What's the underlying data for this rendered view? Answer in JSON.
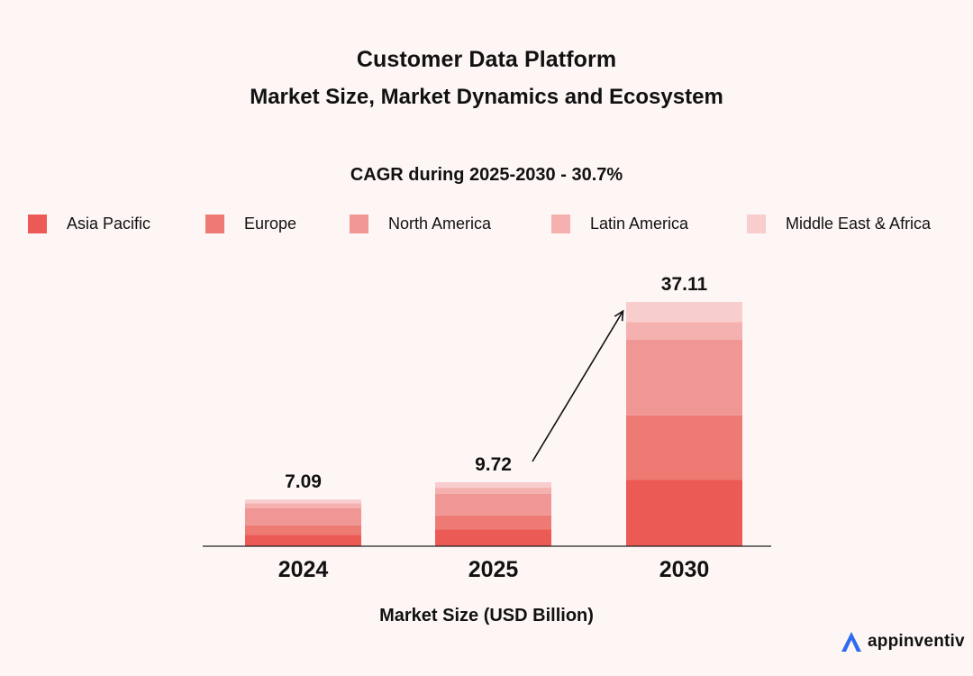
{
  "title": "Customer Data Platform",
  "subtitle": "Market Size, Market Dynamics and Ecosystem",
  "cagr_text": "CAGR during 2025-2030 - 30.7%",
  "brand": {
    "name": "appinventiv",
    "logo_color": "#2f6bef"
  },
  "legend": [
    {
      "label": "Asia Pacific",
      "color": "#ec5a55"
    },
    {
      "label": "Europe",
      "color": "#ee7a74"
    },
    {
      "label": "North America",
      "color": "#f09795"
    },
    {
      "label": "Latin America",
      "color": "#f4b1af"
    },
    {
      "label": "Middle East & Africa",
      "color": "#f8cdcd"
    }
  ],
  "chart_data": {
    "type": "bar",
    "stacked": true,
    "title": "CAGR during 2025-2030 - 30.7%",
    "xlabel": "Market Size (USD Billion)",
    "ylabel": "",
    "categories": [
      "2024",
      "2025",
      "2030"
    ],
    "totals": [
      7.09,
      9.72,
      37.11
    ],
    "total_labels": [
      "7.09",
      "9.72",
      "37.11"
    ],
    "series": [
      {
        "name": "Asia Pacific",
        "color": "#ec5a55",
        "values": [
          1.76,
          2.54,
          10.07
        ]
      },
      {
        "name": "Europe",
        "color": "#ee7a74",
        "values": [
          1.43,
          2.13,
          9.82
        ]
      },
      {
        "name": "North America",
        "color": "#f09795",
        "values": [
          2.61,
          3.27,
          11.47
        ]
      },
      {
        "name": "Latin America",
        "color": "#f4b1af",
        "values": [
          0.7,
          0.95,
          2.71
        ]
      },
      {
        "name": "Middle East & Africa",
        "color": "#f8cdcd",
        "values": [
          0.59,
          0.83,
          3.04
        ]
      }
    ],
    "ylim": [
      0,
      37.11
    ],
    "grid": false,
    "legend_position": "top",
    "annotation": "arrow from 2025 to 2030"
  }
}
